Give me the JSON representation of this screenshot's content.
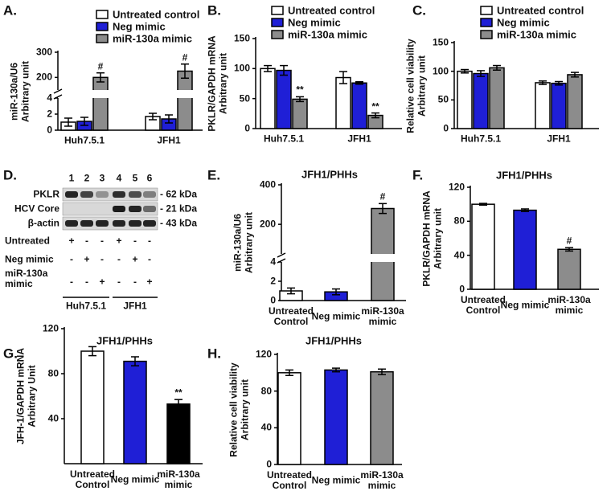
{
  "chart_data": [
    {
      "type": "bar",
      "panel": "A.",
      "ylabel": [
        "miR-130a/U6",
        "Arbitrary unit"
      ],
      "categories": [
        "Huh7.5.1",
        "JFH1"
      ],
      "series": [
        {
          "name": "Untreated control",
          "color": "#ffffff",
          "values": [
            1.0,
            1.7
          ],
          "errors": [
            0.5,
            0.4
          ]
        },
        {
          "name": "Neg mimic",
          "color": "#1f1fd6",
          "values": [
            1.1,
            1.4
          ],
          "errors": [
            0.5,
            0.5
          ]
        },
        {
          "name": "miR-130a mimic",
          "color": "#8c8c8c",
          "values": [
            200,
            225
          ],
          "errors": [
            18,
            28
          ],
          "annotations": [
            "#",
            "#"
          ]
        }
      ],
      "ylim": [
        0,
        300
      ],
      "yticks": [
        0,
        2,
        4,
        200,
        300
      ],
      "axis_break": [
        4,
        150
      ]
    },
    {
      "type": "bar",
      "panel": "B.",
      "ylabel": [
        "PKLR/GAPDH mRNA",
        "Arbitrary unit"
      ],
      "categories": [
        "Huh7.5.1",
        "JFH1"
      ],
      "series": [
        {
          "name": "Untreated control",
          "color": "#ffffff",
          "values": [
            100,
            85
          ],
          "errors": [
            5,
            10
          ]
        },
        {
          "name": "Neg mimic",
          "color": "#1f1fd6",
          "values": [
            97,
            76
          ],
          "errors": [
            8,
            2
          ]
        },
        {
          "name": "miR-130a mimic",
          "color": "#8c8c8c",
          "values": [
            49,
            22
          ],
          "errors": [
            4,
            4
          ],
          "annotations": [
            "**",
            "**"
          ]
        }
      ],
      "ylim": [
        0,
        150
      ],
      "yticks": [
        0,
        50,
        100,
        150
      ]
    },
    {
      "type": "bar",
      "panel": "C.",
      "ylabel": [
        "Relative cell viability",
        "Arbitrary unit"
      ],
      "categories": [
        "Huh7.5.1",
        "JFH1"
      ],
      "series": [
        {
          "name": "Untreated control",
          "color": "#ffffff",
          "values": [
            100,
            80
          ],
          "errors": [
            3,
            3
          ]
        },
        {
          "name": "Neg mimic",
          "color": "#1f1fd6",
          "values": [
            96,
            79
          ],
          "errors": [
            5,
            3
          ]
        },
        {
          "name": "miR-130a mimic",
          "color": "#8c8c8c",
          "values": [
            106,
            94
          ],
          "errors": [
            4,
            4
          ]
        }
      ],
      "ylim": [
        0,
        150
      ],
      "yticks": [
        0,
        50,
        100,
        150
      ]
    },
    {
      "type": "bar",
      "panel": "E.",
      "title": "JFH1/PHHs",
      "ylabel": [
        "miR-130a/U6",
        "Arbitrary unit"
      ],
      "categories": [
        "Untreated Control",
        "Neg mimic",
        "miR-130a mimic"
      ],
      "colors": [
        "#ffffff",
        "#1f1fd6",
        "#8c8c8c"
      ],
      "values": [
        1.0,
        0.9,
        280
      ],
      "errors": [
        0.3,
        0.3,
        25
      ],
      "annotations": [
        null,
        null,
        "#"
      ],
      "ylim": [
        0,
        400
      ],
      "yticks": [
        0,
        2,
        4,
        200,
        400
      ],
      "axis_break": [
        4,
        50
      ]
    },
    {
      "type": "bar",
      "panel": "F.",
      "title": "JFH1/PHHs",
      "ylabel": [
        "PKLR/GAPDH mRNA",
        "Arbitrary unit"
      ],
      "categories": [
        "Untreated Control",
        "Neg mimic",
        "miR-130a mimic"
      ],
      "colors": [
        "#ffffff",
        "#1f1fd6",
        "#8c8c8c"
      ],
      "values": [
        100,
        93,
        47
      ],
      "errors": [
        1,
        1.5,
        2
      ],
      "annotations": [
        null,
        null,
        "#"
      ],
      "ylim": [
        0,
        120
      ],
      "yticks": [
        0,
        40,
        80,
        120
      ]
    },
    {
      "type": "bar",
      "panel": "G.",
      "title": "JFH1/PHHs",
      "ylabel": [
        "JFH-1/GAPDH mRNA",
        "Arbitrary Unit"
      ],
      "categories": [
        "Untreated Control",
        "Neg mimic",
        "miR-130a mimic"
      ],
      "colors": [
        "#ffffff",
        "#1f1fd6",
        "#000000"
      ],
      "values": [
        100,
        91,
        53
      ],
      "errors": [
        4,
        4,
        4
      ],
      "annotations": [
        null,
        null,
        "**"
      ],
      "ylim": [
        0,
        120
      ],
      "yticks": [
        40,
        80,
        120
      ]
    },
    {
      "type": "bar",
      "panel": "H.",
      "title": "JFH1/PHHs",
      "ylabel": [
        "Relative cell viability",
        "Arbitrary unit"
      ],
      "categories": [
        "Untreated Control",
        "Neg mimic",
        "miR-130a mimic"
      ],
      "colors": [
        "#ffffff",
        "#1f1fd6",
        "#8c8c8c"
      ],
      "values": [
        100,
        103,
        101
      ],
      "errors": [
        3,
        2,
        3
      ],
      "ylim": [
        0,
        120
      ],
      "yticks": [
        0,
        40,
        80,
        120
      ]
    }
  ],
  "blot": {
    "panel": "D.",
    "lanes": [
      "1",
      "2",
      "3",
      "4",
      "5",
      "6"
    ],
    "bands": [
      {
        "name": "PKLR",
        "size": "- 62 kDa"
      },
      {
        "name": "HCV Core",
        "size": "- 21 kDa"
      },
      {
        "name": "β-actin",
        "size": "- 43 kDa"
      }
    ],
    "treatments": [
      {
        "name": "Untreated",
        "signs": [
          "+",
          "-",
          "-",
          "+",
          "-",
          "-"
        ]
      },
      {
        "name": "Neg mimic",
        "signs": [
          "-",
          "+",
          "-",
          "-",
          "+",
          "-"
        ]
      },
      {
        "name": "miR-130a mimic",
        "signs": [
          "-",
          "-",
          "+",
          "-",
          "-",
          "+"
        ]
      }
    ],
    "groups": [
      "Huh7.5.1",
      "JFH1"
    ]
  }
}
